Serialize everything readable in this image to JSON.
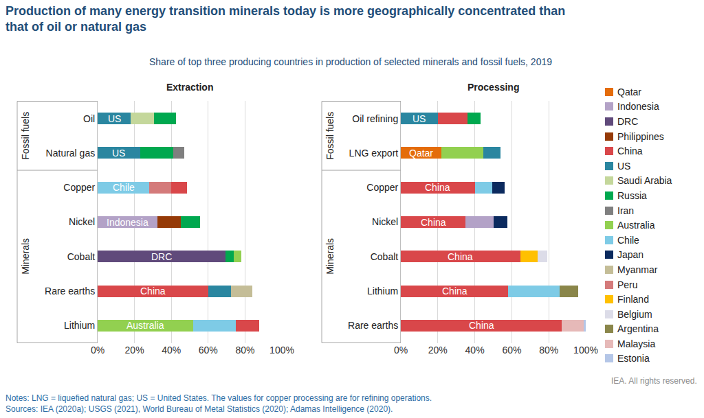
{
  "title": [
    "Production of many energy transition minerals today is more geographically concentrated than",
    "that of oil or natural gas"
  ],
  "subtitle": "Share of top three producing countries in production of selected minerals and fossil fuels, 2019",
  "countries": [
    {
      "name": "Qatar",
      "color": "#e46c0a"
    },
    {
      "name": "Indonesia",
      "color": "#b3a2c7"
    },
    {
      "name": "DRC",
      "color": "#604a7b"
    },
    {
      "name": "Philippines",
      "color": "#953a07"
    },
    {
      "name": "China",
      "color": "#d9474a"
    },
    {
      "name": "US",
      "color": "#2a86a0"
    },
    {
      "name": "Saudi Arabia",
      "color": "#c4d79b"
    },
    {
      "name": "Russia",
      "color": "#00a84f"
    },
    {
      "name": "Iran",
      "color": "#7f7f7f"
    },
    {
      "name": "Australia",
      "color": "#92d050"
    },
    {
      "name": "Chile",
      "color": "#7ecbe6"
    },
    {
      "name": "Japan",
      "color": "#0b2a5e"
    },
    {
      "name": "Myanmar",
      "color": "#c4bd97"
    },
    {
      "name": "Peru",
      "color": "#d47a7a"
    },
    {
      "name": "Finland",
      "color": "#ffc000"
    },
    {
      "name": "Belgium",
      "color": "#dcdce8"
    },
    {
      "name": "Argentina",
      "color": "#8a864a"
    },
    {
      "name": "Malaysia",
      "color": "#e6b9b8"
    },
    {
      "name": "Estonia",
      "color": "#b4c6e7"
    }
  ],
  "chart_data": [
    {
      "type": "bar",
      "title": "Extraction",
      "orientation": "horizontal",
      "stacked": true,
      "grid": true,
      "xlim": [
        0,
        100
      ],
      "xticks": [
        {
          "value": 0,
          "label": "0%"
        },
        {
          "value": 20,
          "label": "20%"
        },
        {
          "value": 40,
          "label": "40%"
        },
        {
          "value": 60,
          "label": "60%"
        },
        {
          "value": 80,
          "label": "80%"
        },
        {
          "value": 100,
          "label": "100%"
        }
      ],
      "categories": [
        "Oil",
        "Natural gas",
        "Copper",
        "Nickel",
        "Cobalt",
        "Rare earths",
        "Lithium"
      ],
      "groups": [
        {
          "label": "Fossil fuels",
          "categories": [
            "Oil",
            "Natural gas"
          ]
        },
        {
          "label": "Minerals",
          "categories": [
            "Copper",
            "Nickel",
            "Cobalt",
            "Rare earths",
            "Lithium"
          ]
        }
      ],
      "segments": [
        [
          {
            "name": "US",
            "value": 18
          },
          {
            "name": "Saudi Arabia",
            "value": 12.5
          },
          {
            "name": "Russia",
            "value": 12
          }
        ],
        [
          {
            "name": "US",
            "value": 23
          },
          {
            "name": "Russia",
            "value": 18
          },
          {
            "name": "Iran",
            "value": 6
          }
        ],
        [
          {
            "name": "Chile",
            "value": 28
          },
          {
            "name": "Peru",
            "value": 12
          },
          {
            "name": "China",
            "value": 8.5
          }
        ],
        [
          {
            "name": "Indonesia",
            "value": 32.5
          },
          {
            "name": "Philippines",
            "value": 12.5
          },
          {
            "name": "Russia",
            "value": 10.5
          }
        ],
        [
          {
            "name": "DRC",
            "value": 69.5
          },
          {
            "name": "Russia",
            "value": 4.5
          },
          {
            "name": "Australia",
            "value": 4
          }
        ],
        [
          {
            "name": "China",
            "value": 60
          },
          {
            "name": "US",
            "value": 12.5
          },
          {
            "name": "Myanmar",
            "value": 11.5
          }
        ],
        [
          {
            "name": "Australia",
            "value": 52
          },
          {
            "name": "Chile",
            "value": 23
          },
          {
            "name": "China",
            "value": 12.5
          }
        ]
      ],
      "annotations": [
        {
          "category": "Oil",
          "text": "US"
        },
        {
          "category": "Natural gas",
          "text": "US"
        },
        {
          "category": "Copper",
          "text": "Chile"
        },
        {
          "category": "Nickel",
          "text": "Indonesia"
        },
        {
          "category": "Cobalt",
          "text": "DRC"
        },
        {
          "category": "Rare earths",
          "text": "China"
        },
        {
          "category": "Lithium",
          "text": "Australia"
        }
      ]
    },
    {
      "type": "bar",
      "title": "Processing",
      "orientation": "horizontal",
      "stacked": true,
      "grid": true,
      "xlim": [
        0,
        100
      ],
      "xticks": [
        {
          "value": 0,
          "label": "0%"
        },
        {
          "value": 20,
          "label": "20%"
        },
        {
          "value": 40,
          "label": "40%"
        },
        {
          "value": 60,
          "label": "60%"
        },
        {
          "value": 80,
          "label": "80%"
        },
        {
          "value": 100,
          "label": "100%"
        }
      ],
      "categories": [
        "Oil refining",
        "LNG export",
        "Copper",
        "Nickel",
        "Cobalt",
        "Lithium",
        "Rare earths"
      ],
      "groups": [
        {
          "label": "Fossil fuels",
          "categories": [
            "Oil refining",
            "LNG export"
          ]
        },
        {
          "label": "Minerals",
          "categories": [
            "Copper",
            "Nickel",
            "Cobalt",
            "Lithium",
            "Rare earths"
          ]
        }
      ],
      "segments": [
        [
          {
            "name": "US",
            "value": 20
          },
          {
            "name": "China",
            "value": 16
          },
          {
            "name": "Russia",
            "value": 7
          }
        ],
        [
          {
            "name": "Qatar",
            "value": 22
          },
          {
            "name": "Australia",
            "value": 22.5
          },
          {
            "name": "US",
            "value": 9.5
          }
        ],
        [
          {
            "name": "China",
            "value": 40
          },
          {
            "name": "Chile",
            "value": 9.5
          },
          {
            "name": "Japan",
            "value": 6.5
          }
        ],
        [
          {
            "name": "China",
            "value": 35
          },
          {
            "name": "Indonesia",
            "value": 15
          },
          {
            "name": "Japan",
            "value": 7.5
          }
        ],
        [
          {
            "name": "China",
            "value": 64.5
          },
          {
            "name": "Finland",
            "value": 9.5
          },
          {
            "name": "Belgium",
            "value": 5
          }
        ],
        [
          {
            "name": "China",
            "value": 58
          },
          {
            "name": "Chile",
            "value": 28
          },
          {
            "name": "Argentina",
            "value": 10
          }
        ],
        [
          {
            "name": "China",
            "value": 87
          },
          {
            "name": "Malaysia",
            "value": 12
          },
          {
            "name": "Estonia",
            "value": 1
          }
        ]
      ],
      "annotations": [
        {
          "category": "Oil refining",
          "text": "US"
        },
        {
          "category": "LNG export",
          "text": "Qatar"
        },
        {
          "category": "Copper",
          "text": "China"
        },
        {
          "category": "Nickel",
          "text": "China"
        },
        {
          "category": "Cobalt",
          "text": "China"
        },
        {
          "category": "Lithium",
          "text": "China"
        },
        {
          "category": "Rare earths",
          "text": "China"
        }
      ]
    }
  ],
  "credit": "IEA. All rights reserved.",
  "notes": [
    "Notes: LNG = liquefied natural gas; US = United States. The values for copper processing are for refining operations.",
    "Sources: IEA (2020a); USGS (2021), World Bureau of Metal Statistics (2020); Adamas Intelligence (2020)."
  ]
}
